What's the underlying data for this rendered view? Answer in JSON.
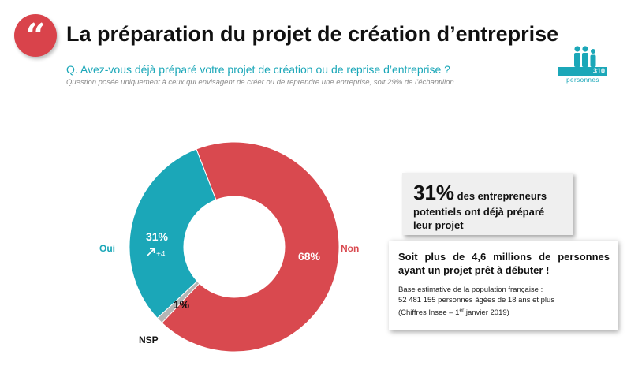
{
  "header": {
    "quote_glyph": "“",
    "title": "La préparation du projet de création d’entreprise",
    "question": "Q. Avez-vous déjà préparé votre projet de création ou de reprise d’entreprise ?",
    "note": "Question posée uniquement à ceux qui envisagent de créer ou de reprendre une entreprise, soit 29% de l’échantillon."
  },
  "sample": {
    "count": "310",
    "unit": "personnes",
    "icon": "people-icon",
    "color": "#1ba7b8"
  },
  "chart_data": {
    "type": "pie",
    "style": "donut",
    "series": [
      {
        "name": "Non",
        "value": 68,
        "label": "68%",
        "color": "#d9494f"
      },
      {
        "name": "NSP",
        "value": 1,
        "label": "1%",
        "color": "#b5b5b5"
      },
      {
        "name": "Oui",
        "value": 31,
        "label": "31%",
        "color": "#1ba7b8",
        "evolution": "+4",
        "evolution_icon": "arrow-up-right-icon"
      }
    ]
  },
  "highlight": {
    "big": "31%",
    "text_first": " des entrepreneurs",
    "text_rest": "potentiels ont déjà préparé leur projet"
  },
  "estimate": {
    "headline": "Soit plus de 4,6 millions de personnes ayant un projet prêt à débuter !",
    "line1": "Base estimative de la population française :",
    "line2": "52 481 155 personnes âgées de 18 ans et plus",
    "line3_a": "(Chiffres Insee – 1",
    "line3_sup": "er",
    "line3_b": " janvier 2019)"
  }
}
